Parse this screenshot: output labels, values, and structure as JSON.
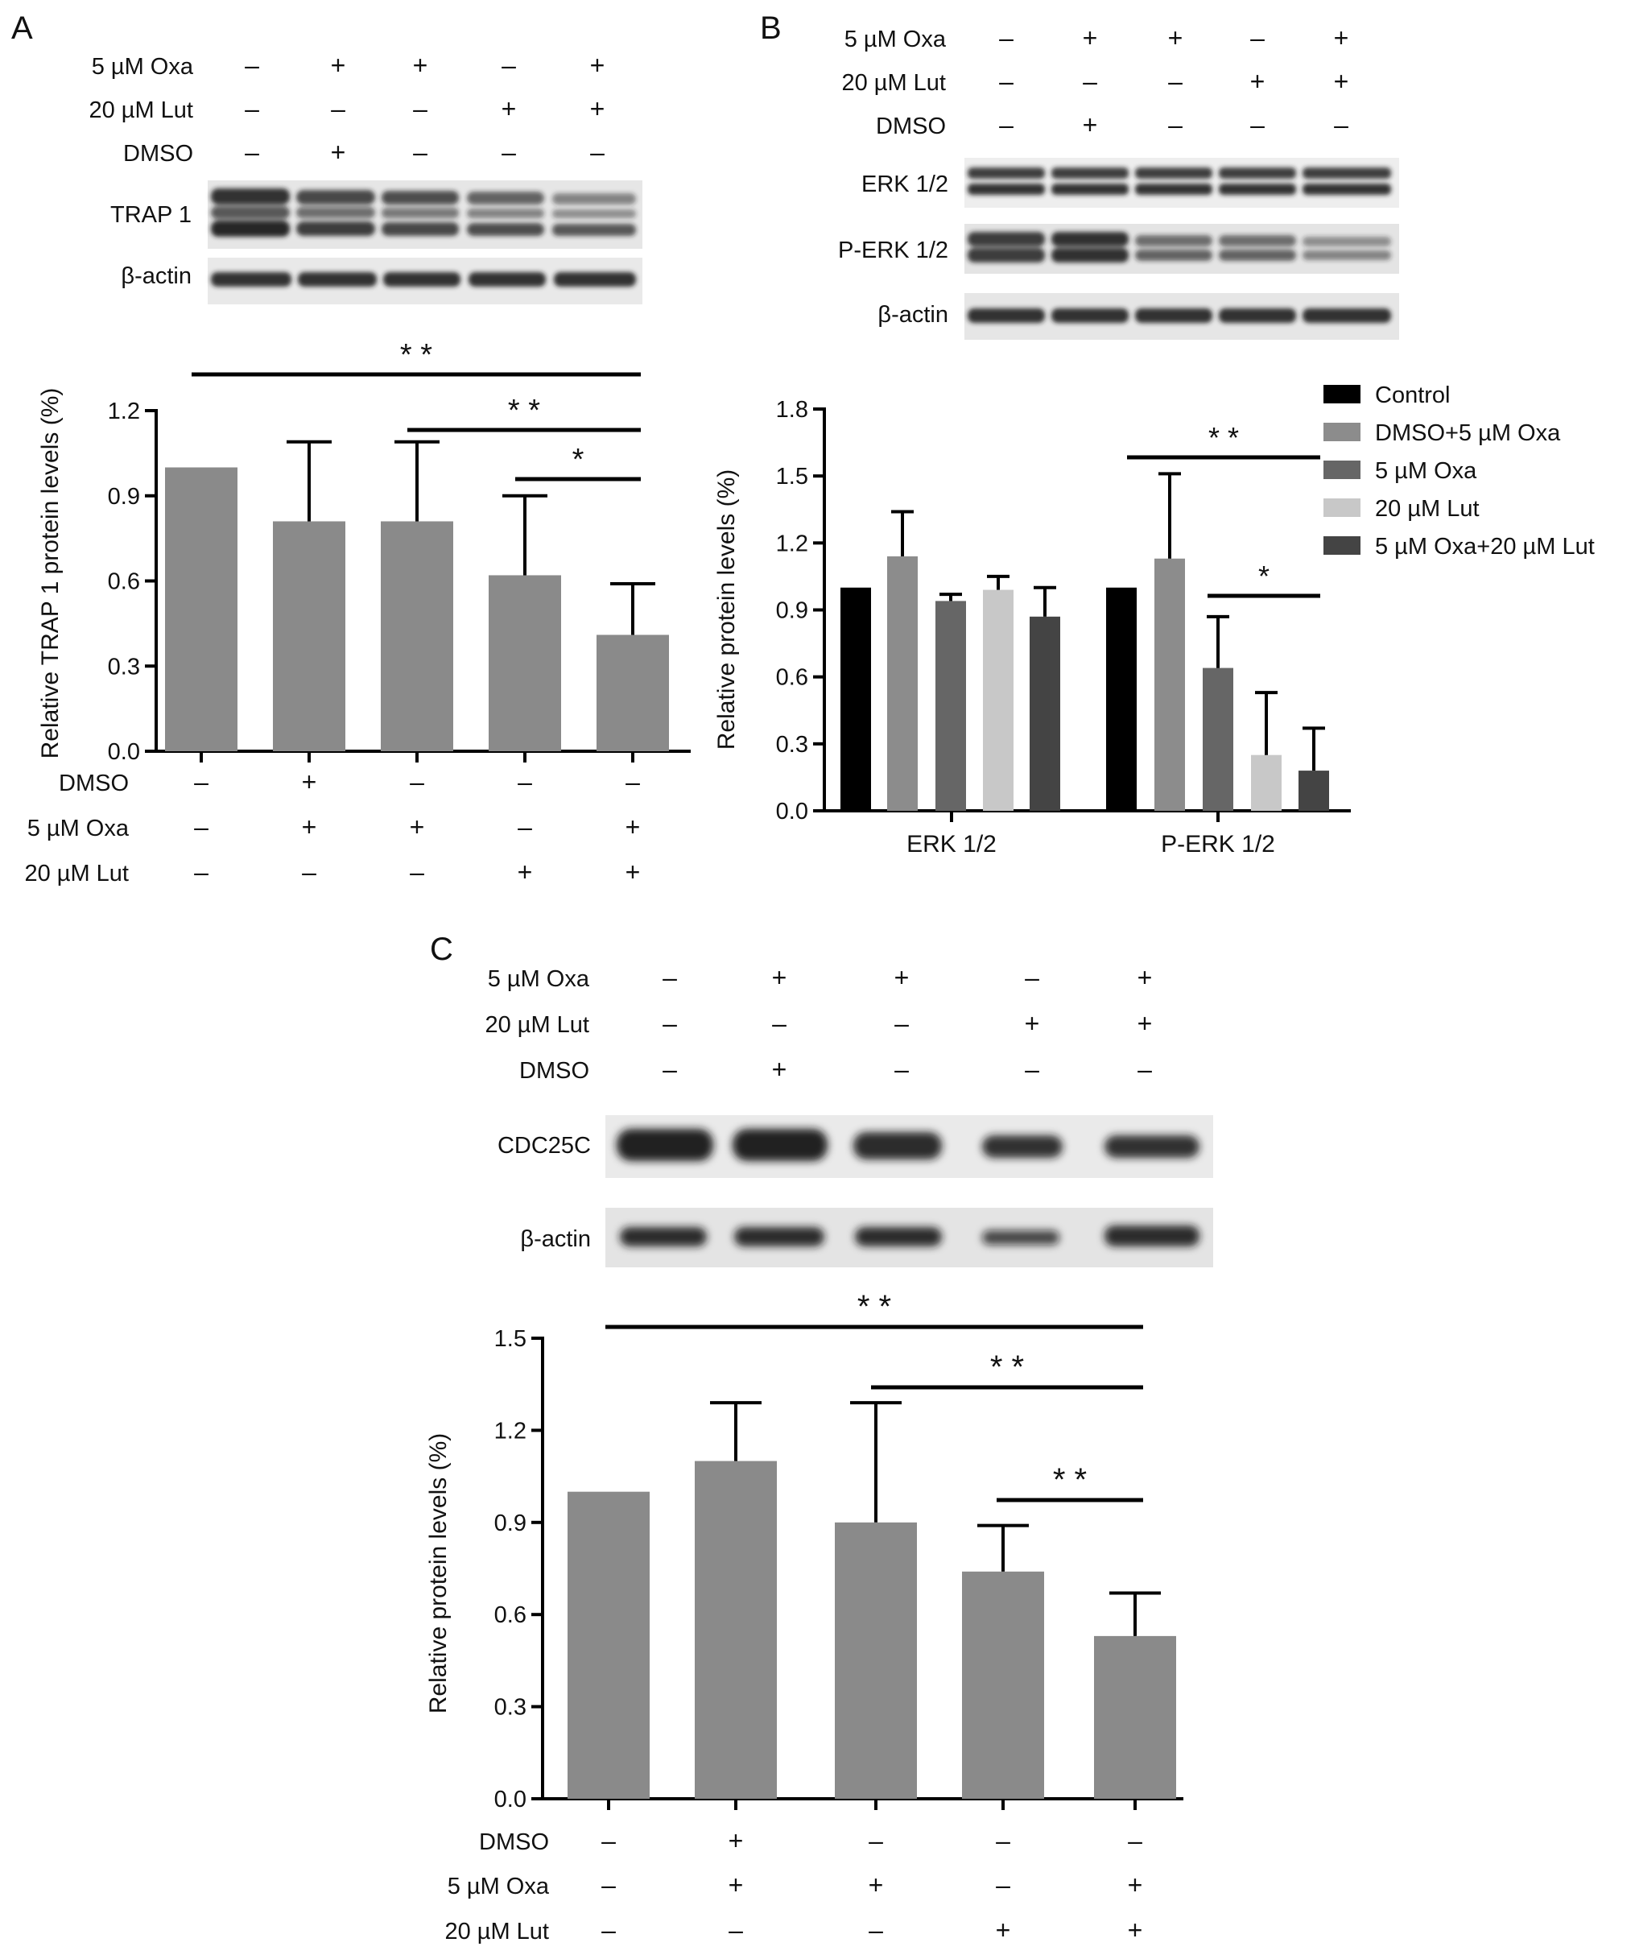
{
  "colors": {
    "bar_gray": "#8a8a8a",
    "axis": "#000000"
  },
  "panels": [
    {
      "letter": "A",
      "blot_header": [
        {
          "label": "5 µM Oxa",
          "signs": [
            "–",
            "+",
            "+",
            "–",
            "+"
          ]
        },
        {
          "label": "20 µM Lut",
          "signs": [
            "–",
            "–",
            "–",
            "+",
            "+"
          ]
        },
        {
          "label": "DMSO",
          "signs": [
            "–",
            "+",
            "–",
            "–",
            "–"
          ]
        }
      ],
      "blots": [
        {
          "label": "TRAP 1",
          "bands": 3
        },
        {
          "label": "β-actin",
          "bands": 1
        }
      ],
      "bottom_rows": [
        {
          "label": "DMSO",
          "signs": [
            "–",
            "+",
            "–",
            "–",
            "–"
          ]
        },
        {
          "label": "5 µM Oxa",
          "signs": [
            "–",
            "+",
            "+",
            "–",
            "+"
          ]
        },
        {
          "label": "20 µM Lut",
          "signs": [
            "–",
            "–",
            "–",
            "+",
            "+"
          ]
        }
      ]
    },
    {
      "letter": "B",
      "blot_header": [
        {
          "label": "5 µM Oxa",
          "signs": [
            "–",
            "+",
            "+",
            "–",
            "+"
          ]
        },
        {
          "label": "20 µM Lut",
          "signs": [
            "–",
            "–",
            "–",
            "+",
            "+"
          ]
        },
        {
          "label": "DMSO",
          "signs": [
            "–",
            "+",
            "–",
            "–",
            "–"
          ]
        }
      ],
      "blots": [
        {
          "label": "ERK 1/2",
          "bands": 2
        },
        {
          "label": "P-ERK 1/2",
          "bands": 2
        },
        {
          "label": "β-actin",
          "bands": 1
        }
      ]
    },
    {
      "letter": "C",
      "blot_header": [
        {
          "label": "5 µM Oxa",
          "signs": [
            "–",
            "+",
            "+",
            "–",
            "+"
          ]
        },
        {
          "label": "20 µM Lut",
          "signs": [
            "–",
            "–",
            "–",
            "+",
            "+"
          ]
        },
        {
          "label": "DMSO",
          "signs": [
            "–",
            "+",
            "–",
            "–",
            "–"
          ]
        }
      ],
      "blots": [
        {
          "label": "CDC25C",
          "bands": 1
        },
        {
          "label": "β-actin",
          "bands": 1
        }
      ],
      "bottom_rows": [
        {
          "label": "DMSO",
          "signs": [
            "–",
            "+",
            "–",
            "–",
            "–"
          ]
        },
        {
          "label": "5 µM Oxa",
          "signs": [
            "–",
            "+",
            "+",
            "–",
            "+"
          ]
        },
        {
          "label": "20 µM Lut",
          "signs": [
            "–",
            "–",
            "–",
            "+",
            "+"
          ]
        }
      ]
    }
  ],
  "chart_data": [
    {
      "type": "bar",
      "panel": "A",
      "ylabel": "Relative TRAP 1 protein levels (%)",
      "ylim": [
        0,
        1.2
      ],
      "yticks": [
        "0.0",
        "0.3",
        "0.6",
        "0.9",
        "1.2"
      ],
      "values": [
        1.0,
        0.81,
        0.81,
        0.62,
        0.41
      ],
      "errors": [
        0,
        0.28,
        0.28,
        0.28,
        0.18
      ],
      "significance": [
        {
          "from": 0,
          "to": 4,
          "label": "* *"
        },
        {
          "from": 2,
          "to": 4,
          "label": "* *"
        },
        {
          "from": 3,
          "to": 4,
          "label": "*"
        }
      ]
    },
    {
      "type": "bar",
      "panel": "B",
      "ylabel": "Relative protein levels (%)",
      "ylim": [
        0,
        1.8
      ],
      "yticks": [
        "0.0",
        "0.3",
        "0.6",
        "0.9",
        "1.2",
        "1.5",
        "1.8"
      ],
      "categories": [
        "ERK 1/2",
        "P-ERK 1/2"
      ],
      "series": [
        {
          "name": "Control",
          "color": "#000000",
          "values": [
            1.0,
            1.0
          ],
          "errors": [
            0,
            0
          ]
        },
        {
          "name": "DMSO+5 µM Oxa",
          "color": "#8c8c8c",
          "values": [
            1.14,
            1.13
          ],
          "errors": [
            0.2,
            0.38
          ]
        },
        {
          "name": "5 µM Oxa",
          "color": "#666666",
          "values": [
            0.94,
            0.64
          ],
          "errors": [
            0.03,
            0.23
          ]
        },
        {
          "name": "20 µM Lut",
          "color": "#c8c8c8",
          "values": [
            0.99,
            0.25
          ],
          "errors": [
            0.06,
            0.28
          ]
        },
        {
          "name": "5 µM Oxa+20 µM Lut",
          "color": "#444444",
          "values": [
            0.87,
            0.18
          ],
          "errors": [
            0.13,
            0.19
          ]
        }
      ],
      "legend": "top-right",
      "significance": [
        {
          "category": 1,
          "from": 0,
          "to": 4,
          "label": "* *"
        },
        {
          "category": 1,
          "from": 2,
          "to": 4,
          "label": "*"
        }
      ]
    },
    {
      "type": "bar",
      "panel": "C",
      "ylabel": "Relative protein levels (%)",
      "ylim": [
        0,
        1.5
      ],
      "yticks": [
        "0.0",
        "0.3",
        "0.6",
        "0.9",
        "1.2",
        "1.5"
      ],
      "values": [
        1.0,
        1.1,
        0.9,
        0.74,
        0.53
      ],
      "errors": [
        0,
        0.19,
        0.39,
        0.15,
        0.14
      ],
      "significance": [
        {
          "from": 0,
          "to": 4,
          "label": "* *"
        },
        {
          "from": 2,
          "to": 4,
          "label": "* *"
        },
        {
          "from": 3,
          "to": 4,
          "label": "* *"
        }
      ]
    }
  ]
}
